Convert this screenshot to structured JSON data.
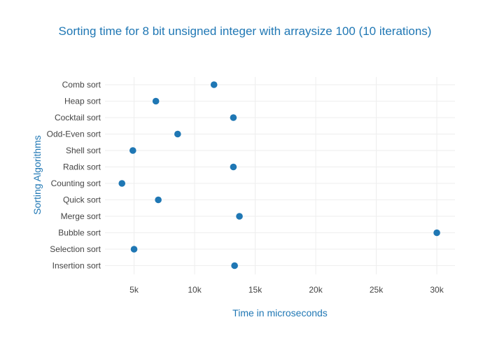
{
  "colors": {
    "accent": "#1f77b4",
    "title": "#1f77b4",
    "tick_text": "#444444",
    "grid": "#eeeeee",
    "background": "#ffffff"
  },
  "chart_data": {
    "type": "scatter",
    "title": "Sorting time for 8 bit unsigned integer with arraysize 100 (10 iterations)",
    "xlabel": "Time in microseconds",
    "ylabel": "Sorting Algorithms",
    "xlim": [
      2600,
      31500
    ],
    "x_ticks": [
      5000,
      10000,
      15000,
      20000,
      25000,
      30000
    ],
    "x_tick_labels": [
      "5k",
      "10k",
      "15k",
      "20k",
      "25k",
      "30k"
    ],
    "grid": true,
    "legend": "none",
    "categories": [
      "Comb sort",
      "Heap sort",
      "Cocktail sort",
      "Odd-Even sort",
      "Shell sort",
      "Radix sort",
      "Counting sort",
      "Quick sort",
      "Merge sort",
      "Bubble sort",
      "Selection sort",
      "Insertion sort"
    ],
    "series": [
      {
        "values": [
          11600,
          6800,
          13200,
          8600,
          4900,
          13200,
          4000,
          7000,
          13700,
          30000,
          5000,
          13300
        ]
      }
    ]
  }
}
